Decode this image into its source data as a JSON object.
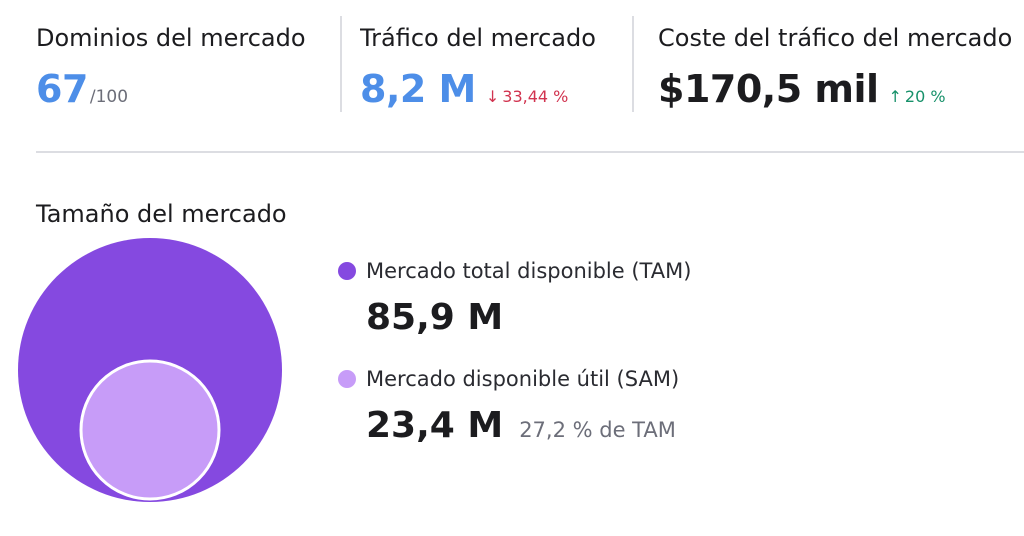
{
  "colors": {
    "accent_blue": "#4d8ee8",
    "tam_purple": "#8549e0",
    "sam_lilac": "#c79cf8",
    "down_red": "#d1334f",
    "up_green": "#17916a"
  },
  "metrics": {
    "domains": {
      "label": "Dominios del mercado",
      "value": "67",
      "suffix": "/100"
    },
    "traffic": {
      "label": "Tráfico del mercado",
      "value": "8,2 M",
      "delta_icon": "arrow-down-icon",
      "delta_arrow": "↓",
      "delta": "33,44 %"
    },
    "traffic_cost": {
      "label": "Coste del tráfico del mercado",
      "value": "$170,5 mil",
      "delta_icon": "arrow-up-icon",
      "delta_arrow": "↑",
      "delta": "20 %"
    }
  },
  "market_size": {
    "title": "Tamaño del mercado",
    "tam": {
      "label": "Mercado total disponible (TAM)",
      "value": "85,9 M"
    },
    "sam": {
      "label": "Mercado disponible útil (SAM)",
      "value": "23,4 M",
      "note": "27,2 % de TAM"
    }
  }
}
